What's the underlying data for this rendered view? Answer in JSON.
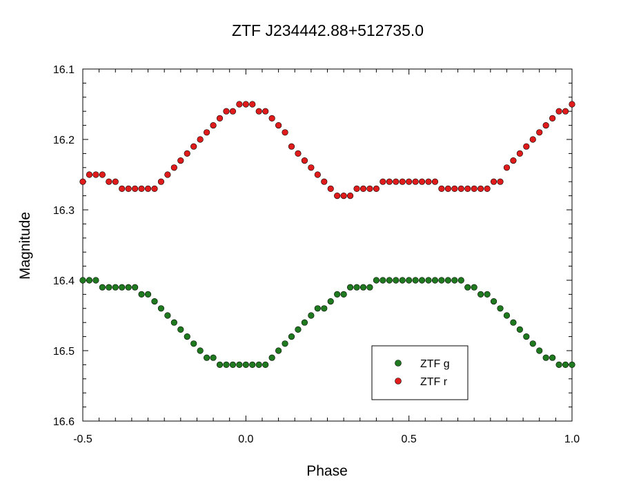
{
  "chart_data": {
    "type": "scatter",
    "title": "ZTF J234442.88+512735.0",
    "xlabel": "Phase",
    "ylabel": "Magnitude",
    "xlim": [
      -0.5,
      1.0
    ],
    "ylim": [
      16.1,
      16.6
    ],
    "y_inverted": true,
    "grid": false,
    "legend_position": "bottom-right",
    "x_ticks": [
      -0.5,
      0.0,
      0.5,
      1.0
    ],
    "x_tick_labels": [
      "-0.5",
      "0.0",
      "0.5",
      "1.0"
    ],
    "y_ticks": [
      16.1,
      16.2,
      16.3,
      16.4,
      16.5,
      16.6
    ],
    "y_tick_labels": [
      "16.1",
      "16.2",
      "16.3",
      "16.4",
      "16.5",
      "16.6"
    ],
    "series": [
      {
        "name": "ZTF g",
        "color": "#1f7a1f",
        "marker": "circle",
        "x": [
          -0.5,
          -0.48,
          -0.46,
          -0.44,
          -0.42,
          -0.4,
          -0.38,
          -0.36,
          -0.34,
          -0.32,
          -0.3,
          -0.28,
          -0.26,
          -0.24,
          -0.22,
          -0.2,
          -0.18,
          -0.16,
          -0.14,
          -0.12,
          -0.1,
          -0.08,
          -0.06,
          -0.04,
          -0.02,
          0.0,
          0.02,
          0.04,
          0.06,
          0.08,
          0.1,
          0.12,
          0.14,
          0.16,
          0.18,
          0.2,
          0.22,
          0.24,
          0.26,
          0.28,
          0.3,
          0.32,
          0.34,
          0.36,
          0.38,
          0.4,
          0.42,
          0.44,
          0.46,
          0.48,
          0.5,
          0.52,
          0.54,
          0.56,
          0.58,
          0.6,
          0.62,
          0.64,
          0.66,
          0.68,
          0.7,
          0.72,
          0.74,
          0.76,
          0.78,
          0.8,
          0.82,
          0.84,
          0.86,
          0.88,
          0.9,
          0.92,
          0.94,
          0.96,
          0.98,
          1.0
        ],
        "y": [
          16.4,
          16.4,
          16.4,
          16.41,
          16.41,
          16.41,
          16.41,
          16.41,
          16.41,
          16.42,
          16.42,
          16.43,
          16.44,
          16.45,
          16.46,
          16.47,
          16.48,
          16.49,
          16.5,
          16.51,
          16.51,
          16.52,
          16.52,
          16.52,
          16.52,
          16.52,
          16.52,
          16.52,
          16.52,
          16.51,
          16.5,
          16.49,
          16.48,
          16.47,
          16.46,
          16.45,
          16.44,
          16.44,
          16.43,
          16.42,
          16.42,
          16.41,
          16.41,
          16.41,
          16.41,
          16.4,
          16.4,
          16.4,
          16.4,
          16.4,
          16.4,
          16.4,
          16.4,
          16.4,
          16.4,
          16.4,
          16.4,
          16.4,
          16.4,
          16.41,
          16.41,
          16.42,
          16.42,
          16.43,
          16.44,
          16.45,
          16.46,
          16.47,
          16.48,
          16.49,
          16.5,
          16.51,
          16.51,
          16.52,
          16.52,
          16.52
        ]
      },
      {
        "name": "ZTF r",
        "color": "#e01b1b",
        "marker": "circle",
        "x": [
          -0.5,
          -0.48,
          -0.46,
          -0.44,
          -0.42,
          -0.4,
          -0.38,
          -0.36,
          -0.34,
          -0.32,
          -0.3,
          -0.28,
          -0.26,
          -0.24,
          -0.22,
          -0.2,
          -0.18,
          -0.16,
          -0.14,
          -0.12,
          -0.1,
          -0.08,
          -0.06,
          -0.04,
          -0.02,
          0.0,
          0.02,
          0.04,
          0.06,
          0.08,
          0.1,
          0.12,
          0.14,
          0.16,
          0.18,
          0.2,
          0.22,
          0.24,
          0.26,
          0.28,
          0.3,
          0.32,
          0.34,
          0.36,
          0.38,
          0.4,
          0.42,
          0.44,
          0.46,
          0.48,
          0.5,
          0.52,
          0.54,
          0.56,
          0.58,
          0.6,
          0.62,
          0.64,
          0.66,
          0.68,
          0.7,
          0.72,
          0.74,
          0.76,
          0.78,
          0.8,
          0.82,
          0.84,
          0.86,
          0.88,
          0.9,
          0.92,
          0.94,
          0.96,
          0.98,
          1.0
        ],
        "y": [
          16.26,
          16.25,
          16.25,
          16.25,
          16.26,
          16.26,
          16.27,
          16.27,
          16.27,
          16.27,
          16.27,
          16.27,
          16.26,
          16.25,
          16.24,
          16.23,
          16.22,
          16.21,
          16.2,
          16.19,
          16.18,
          16.17,
          16.16,
          16.16,
          16.15,
          16.15,
          16.15,
          16.16,
          16.16,
          16.17,
          16.18,
          16.19,
          16.21,
          16.22,
          16.23,
          16.24,
          16.25,
          16.26,
          16.27,
          16.28,
          16.28,
          16.28,
          16.27,
          16.27,
          16.27,
          16.27,
          16.26,
          16.26,
          16.26,
          16.26,
          16.26,
          16.26,
          16.26,
          16.26,
          16.26,
          16.27,
          16.27,
          16.27,
          16.27,
          16.27,
          16.27,
          16.27,
          16.27,
          16.26,
          16.26,
          16.24,
          16.23,
          16.22,
          16.21,
          16.2,
          16.19,
          16.18,
          16.17,
          16.16,
          16.16,
          16.15
        ]
      }
    ]
  }
}
